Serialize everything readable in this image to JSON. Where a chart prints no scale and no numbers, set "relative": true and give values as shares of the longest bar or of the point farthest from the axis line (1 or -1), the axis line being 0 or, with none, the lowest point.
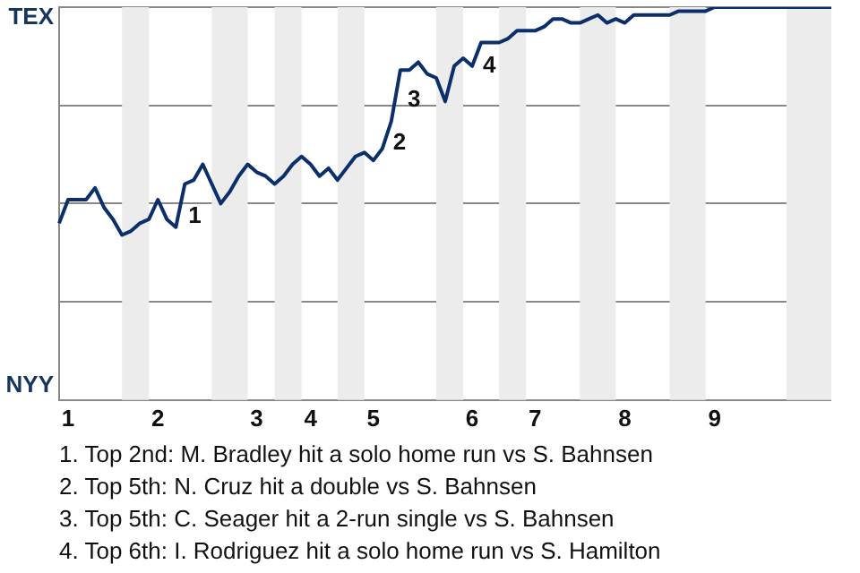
{
  "chart_data": {
    "type": "line",
    "relative": true,
    "categories": [
      null,
      "1",
      null,
      null,
      null,
      null,
      null,
      null,
      null,
      null,
      null,
      "2",
      null,
      null,
      null,
      null,
      null,
      null,
      null,
      null,
      null,
      null,
      "3",
      null,
      null,
      null,
      null,
      null,
      "4",
      null,
      null,
      null,
      null,
      null,
      null,
      "5",
      null,
      null,
      null,
      null,
      null,
      null,
      null,
      null,
      null,
      null,
      "6",
      null,
      null,
      null,
      null,
      null,
      null,
      "7",
      null,
      null,
      null,
      null,
      null,
      null,
      null,
      null,
      null,
      "8",
      null,
      null,
      null,
      null,
      null,
      null,
      null,
      null,
      null,
      "9",
      null,
      null,
      null,
      null,
      null,
      null,
      null,
      null,
      null,
      null,
      null,
      null,
      null
    ],
    "series": [
      {
        "color": "#0b2f6b",
        "values": [
          0.45,
          0.51,
          0.51,
          0.51,
          0.54,
          0.49,
          0.46,
          0.42,
          0.43,
          0.45,
          0.46,
          0.51,
          0.46,
          0.44,
          0.55,
          0.56,
          0.6,
          0.55,
          0.5,
          0.53,
          0.57,
          0.6,
          0.58,
          0.57,
          0.55,
          0.57,
          0.6,
          0.62,
          0.6,
          0.57,
          0.59,
          0.56,
          0.59,
          0.62,
          0.63,
          0.61,
          0.64,
          0.71,
          0.84,
          0.84,
          0.86,
          0.83,
          0.82,
          0.76,
          0.85,
          0.87,
          0.85,
          0.91,
          0.91,
          0.91,
          0.92,
          0.94,
          0.94,
          0.94,
          0.95,
          0.97,
          0.97,
          0.96,
          0.96,
          0.97,
          0.98,
          0.96,
          0.97,
          0.96,
          0.98,
          0.98,
          0.98,
          0.98,
          0.98,
          0.99,
          0.99,
          0.99,
          0.99,
          1,
          1,
          1,
          1,
          1,
          1,
          1,
          1,
          1,
          1,
          1,
          1,
          1,
          1
        ]
      }
    ],
    "grid": "y",
    "marker": "none",
    "line_style": "solid",
    "annotations": [
      "TEX",
      "NYY",
      "1",
      "2",
      "3",
      "4",
      "1. Top 2nd: M. Bradley hit a solo home run vs S. Bahnsen",
      "2. Top 5th: N. Cruz hit a double vs S. Bahnsen",
      "3. Top 5th: C. Seager hit a 2-run single vs S. Bahnsen",
      "4. Top 6th: I. Rodriguez hit a solo home run vs S. Hamilton"
    ]
  }
}
